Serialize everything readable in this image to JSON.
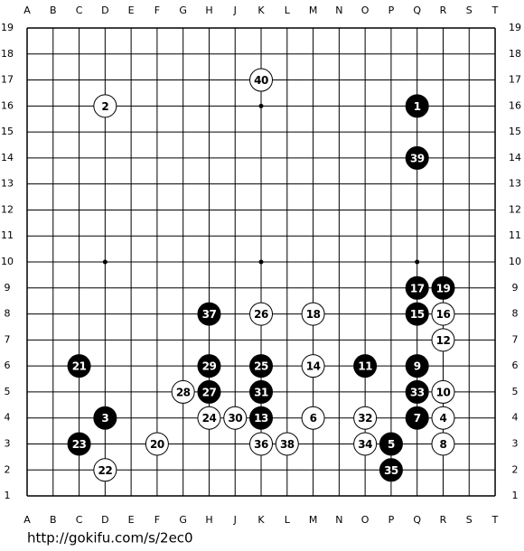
{
  "board": {
    "columns": [
      "A",
      "B",
      "C",
      "D",
      "E",
      "F",
      "G",
      "H",
      "J",
      "K",
      "L",
      "M",
      "N",
      "O",
      "P",
      "Q",
      "R",
      "S",
      "T"
    ],
    "rows": [
      19,
      18,
      17,
      16,
      15,
      14,
      13,
      12,
      11,
      10,
      9,
      8,
      7,
      6,
      5,
      4,
      3,
      2,
      1
    ],
    "stones": [
      {
        "number": 1,
        "color": "black",
        "col": "Q",
        "row": 16
      },
      {
        "number": 2,
        "color": "white",
        "col": "D",
        "row": 16
      },
      {
        "number": 3,
        "color": "black",
        "col": "D",
        "row": 4
      },
      {
        "number": 4,
        "color": "white",
        "col": "R",
        "row": 4
      },
      {
        "number": 5,
        "color": "black",
        "col": "P",
        "row": 3
      },
      {
        "number": 6,
        "color": "white",
        "col": "M",
        "row": 4
      },
      {
        "number": 7,
        "color": "black",
        "col": "Q",
        "row": 4
      },
      {
        "number": 8,
        "color": "white",
        "col": "R",
        "row": 3
      },
      {
        "number": 9,
        "color": "black",
        "col": "Q",
        "row": 6
      },
      {
        "number": 10,
        "color": "white",
        "col": "R",
        "row": 5
      },
      {
        "number": 11,
        "color": "black",
        "col": "O",
        "row": 6
      },
      {
        "number": 12,
        "color": "white",
        "col": "R",
        "row": 7
      },
      {
        "number": 13,
        "color": "black",
        "col": "K",
        "row": 4
      },
      {
        "number": 14,
        "color": "white",
        "col": "M",
        "row": 6
      },
      {
        "number": 15,
        "color": "black",
        "col": "Q",
        "row": 8
      },
      {
        "number": 16,
        "color": "white",
        "col": "R",
        "row": 8
      },
      {
        "number": 17,
        "color": "black",
        "col": "Q",
        "row": 9
      },
      {
        "number": 18,
        "color": "white",
        "col": "M",
        "row": 8
      },
      {
        "number": 19,
        "color": "black",
        "col": "R",
        "row": 9
      },
      {
        "number": 20,
        "color": "white",
        "col": "F",
        "row": 3
      },
      {
        "number": 21,
        "color": "black",
        "col": "C",
        "row": 6
      },
      {
        "number": 22,
        "color": "white",
        "col": "D",
        "row": 2
      },
      {
        "number": 23,
        "color": "black",
        "col": "C",
        "row": 3
      },
      {
        "number": 24,
        "color": "white",
        "col": "H",
        "row": 4
      },
      {
        "number": 25,
        "color": "black",
        "col": "K",
        "row": 6
      },
      {
        "number": 26,
        "color": "white",
        "col": "K",
        "row": 8
      },
      {
        "number": 27,
        "color": "black",
        "col": "H",
        "row": 5
      },
      {
        "number": 28,
        "color": "white",
        "col": "G",
        "row": 5
      },
      {
        "number": 29,
        "color": "black",
        "col": "H",
        "row": 6
      },
      {
        "number": 30,
        "color": "white",
        "col": "J",
        "row": 4
      },
      {
        "number": 31,
        "color": "black",
        "col": "K",
        "row": 5
      },
      {
        "number": 32,
        "color": "white",
        "col": "O",
        "row": 4
      },
      {
        "number": 33,
        "color": "black",
        "col": "Q",
        "row": 5
      },
      {
        "number": 34,
        "color": "white",
        "col": "O",
        "row": 3
      },
      {
        "number": 35,
        "color": "black",
        "col": "P",
        "row": 2
      },
      {
        "number": 36,
        "color": "white",
        "col": "K",
        "row": 3
      },
      {
        "number": 37,
        "color": "black",
        "col": "H",
        "row": 8
      },
      {
        "number": 38,
        "color": "white",
        "col": "L",
        "row": 3
      },
      {
        "number": 39,
        "color": "black",
        "col": "Q",
        "row": 14
      },
      {
        "number": 40,
        "color": "white",
        "col": "K",
        "row": 17
      }
    ]
  },
  "footer": {
    "url": "http://gokifu.com/s/2ec0"
  }
}
